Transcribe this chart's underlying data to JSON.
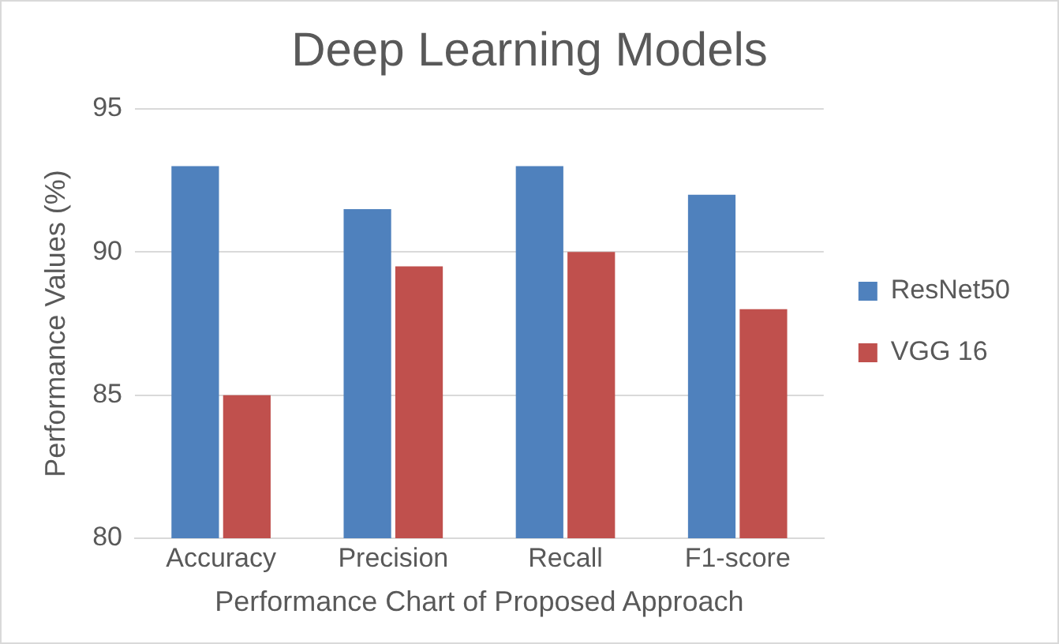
{
  "chart_data": {
    "type": "bar",
    "title": "Deep Learning Models",
    "xlabel": "Performance Chart of Proposed Approach",
    "ylabel": "Performance Values (%)",
    "categories": [
      "Accuracy",
      "Precision",
      "Recall",
      "F1-score"
    ],
    "series": [
      {
        "name": "ResNet50",
        "color": "#4f81bd",
        "values": [
          93,
          91.5,
          93,
          92
        ]
      },
      {
        "name": "VGG 16",
        "color": "#c0504d",
        "values": [
          85,
          89.5,
          90,
          88
        ]
      }
    ],
    "ylim": [
      80,
      95
    ],
    "yticks": [
      80,
      85,
      90,
      95
    ],
    "grid": "y",
    "legend": "right"
  }
}
